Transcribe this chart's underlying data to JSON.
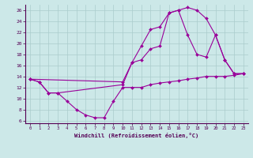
{
  "xlabel": "Windchill (Refroidissement éolien,°C)",
  "bg_color": "#cce8e8",
  "line_color": "#990099",
  "grid_color": "#aacccc",
  "xlim": [
    -0.5,
    23.5
  ],
  "ylim": [
    5.5,
    27.0
  ],
  "yticks": [
    6,
    8,
    10,
    12,
    14,
    16,
    18,
    20,
    22,
    24,
    26
  ],
  "xticks": [
    0,
    1,
    2,
    3,
    4,
    5,
    6,
    7,
    8,
    9,
    10,
    11,
    12,
    13,
    14,
    15,
    16,
    17,
    18,
    19,
    20,
    21,
    22,
    23
  ],
  "series": [
    {
      "x": [
        0,
        1,
        2,
        3,
        4,
        5,
        6,
        7,
        8,
        9,
        10,
        11,
        12,
        13,
        14,
        15,
        16,
        17,
        18,
        19,
        20,
        21,
        22,
        23
      ],
      "y": [
        13.5,
        13.0,
        11.0,
        11.0,
        9.5,
        8.0,
        7.0,
        6.5,
        6.5,
        9.5,
        12.0,
        12.0,
        12.0,
        12.5,
        12.8,
        13.0,
        13.2,
        13.5,
        13.7,
        14.0,
        14.0,
        14.0,
        14.2,
        14.5
      ]
    },
    {
      "x": [
        0,
        1,
        2,
        3,
        10,
        11,
        12,
        13,
        14,
        15,
        16,
        17,
        18,
        19,
        20,
        21,
        22,
        23
      ],
      "y": [
        13.5,
        13.0,
        11.0,
        11.0,
        12.5,
        16.5,
        17.0,
        19.0,
        19.5,
        25.5,
        26.0,
        21.5,
        18.0,
        17.5,
        21.5,
        17.0,
        14.5,
        14.5
      ]
    },
    {
      "x": [
        0,
        10,
        11,
        12,
        13,
        14,
        15,
        16,
        17,
        18,
        19,
        20,
        21,
        22,
        23
      ],
      "y": [
        13.5,
        13.0,
        16.5,
        19.5,
        22.5,
        23.0,
        25.5,
        26.0,
        26.5,
        26.0,
        24.5,
        21.5,
        17.0,
        14.5,
        14.5
      ]
    }
  ]
}
